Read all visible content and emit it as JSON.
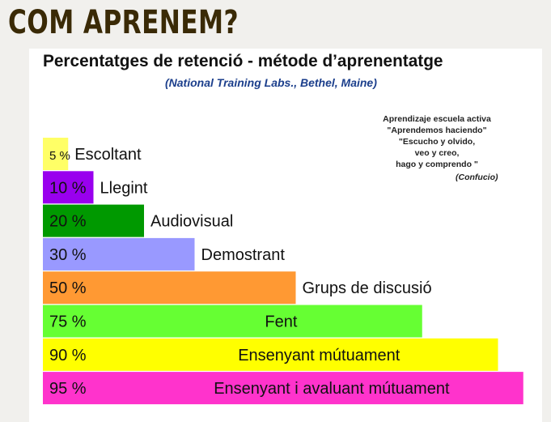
{
  "slide_title": "COM APRENEM?",
  "quote": {
    "lines": [
      "Aprendizaje escuela activa",
      "\"Aprendemos haciendo\"",
      "\"Escucho y olvido,",
      "veo y creo,",
      "hago y comprendo \""
    ],
    "author": "(Confucio)"
  },
  "chart_data": {
    "type": "bar",
    "orientation": "horizontal",
    "title": "Percentatges de retenció - métode d’aprenentatge",
    "subtitle": "(National Training Labs., Bethel, Maine)",
    "categories": [
      "Escoltant",
      "Llegint",
      "Audiovisual",
      "Demostrant",
      "Grups de discusió",
      "Fent",
      "Ensenyant mútuament",
      "Ensenyant  i avaluant mútuament"
    ],
    "values": [
      5,
      10,
      20,
      30,
      50,
      75,
      90,
      95
    ],
    "value_labels": [
      "5 %",
      "10 %",
      "20 %",
      "30 %",
      "50 %",
      "75 %",
      "90 %",
      "95 %"
    ],
    "colors": [
      "#ffff66",
      "#9900ee",
      "#009900",
      "#9999ff",
      "#ff9933",
      "#66ff33",
      "#ffff00",
      "#ff33cc"
    ],
    "xlim": [
      0,
      100
    ],
    "grid": false
  }
}
